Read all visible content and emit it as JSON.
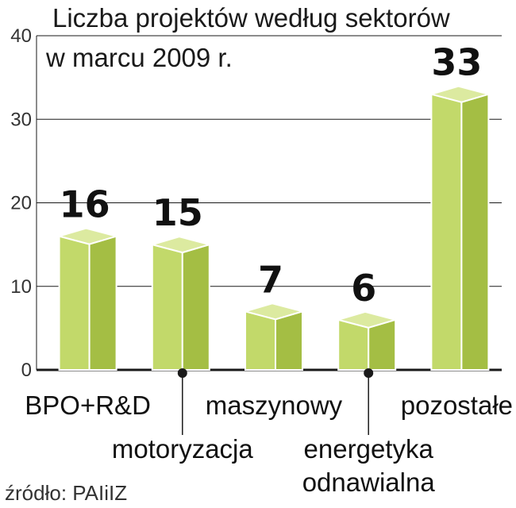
{
  "source": "źródło: PAIiIZ",
  "colors": {
    "bar_front": "#c2d96a",
    "bar_side": "#a4be44",
    "bar_top": "#dceaa0",
    "bar_edge": "#ffffff",
    "grid": "#1a1a1a",
    "text": "#111111"
  },
  "chart_data": {
    "type": "bar",
    "title": "Liczba projektów według sektorów",
    "subtitle": "w marcu 2009 r.",
    "categories": [
      "BPO+R&D",
      "motoryzacja",
      "maszynowy",
      "energetyka odnawialna",
      "pozostałe"
    ],
    "category_label_lines": [
      [
        "BPO+R&D"
      ],
      [
        "motoryzacja"
      ],
      [
        "maszynowy"
      ],
      [
        "energetyka",
        "odnawialna"
      ],
      [
        "pozostałe"
      ]
    ],
    "values": [
      16,
      15,
      7,
      6,
      33
    ],
    "data_labels": [
      "16",
      "15",
      "7",
      "6",
      "33"
    ],
    "yticks": [
      "0",
      "10",
      "20",
      "30",
      "40"
    ],
    "ylim": [
      0,
      40
    ],
    "grid": true,
    "style": "3d-column"
  }
}
